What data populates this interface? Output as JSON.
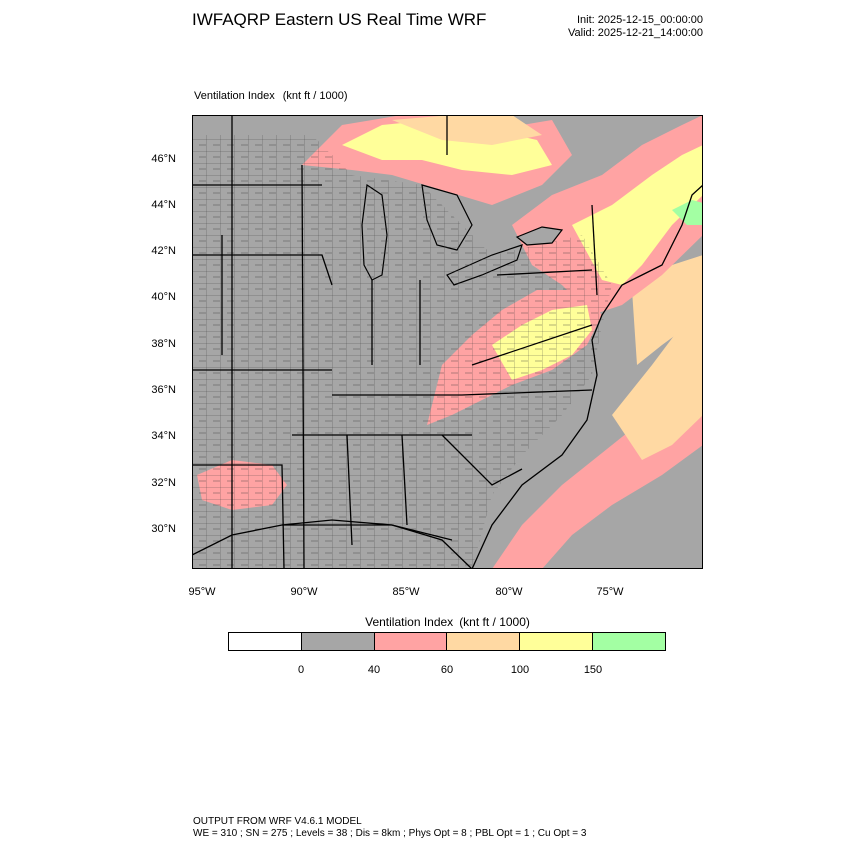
{
  "header": {
    "title": "IWFAQRP Eastern US Real Time WRF",
    "init": "Init: 2025-12-15_00:00:00",
    "valid": "Valid: 2025-12-21_14:00:00"
  },
  "plot": {
    "label": "Ventilation Index",
    "units": "(knt ft / 1000)",
    "lat_labels": [
      "46°N",
      "44°N",
      "42°N",
      "40°N",
      "38°N",
      "36°N",
      "34°N",
      "32°N",
      "30°N"
    ],
    "lon_labels": [
      "95°W",
      "90°W",
      "85°W",
      "80°W",
      "75°W"
    ]
  },
  "colorbar": {
    "title": "Ventilation Index",
    "units": "(knt ft / 1000)",
    "ticks": [
      "0",
      "40",
      "60",
      "100",
      "150"
    ],
    "colors": [
      "#ffffff",
      "#a6a6a6",
      "#ffa3a3",
      "#ffd9a3",
      "#ffff99",
      "#a3ffa3"
    ]
  },
  "footer": {
    "line1": "OUTPUT FROM WRF V4.6.1 MODEL",
    "line2": "WE = 310 ; SN = 275 ; Levels = 38 ; Dis = 8km ; Phys Opt = 8 ; PBL Opt = 1 ; Cu Opt = 3"
  }
}
